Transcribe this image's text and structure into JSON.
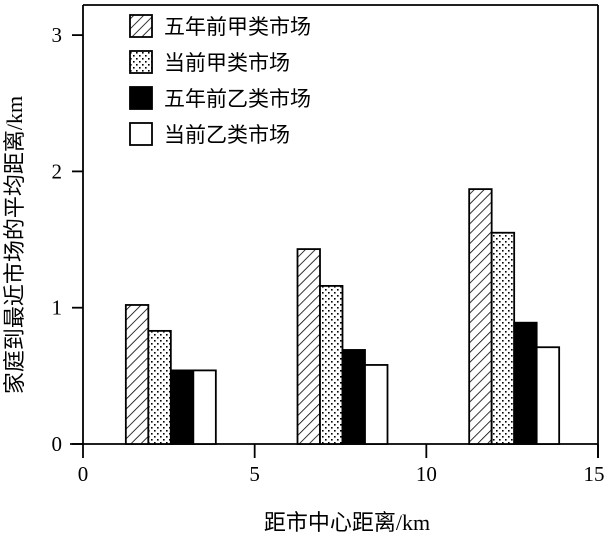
{
  "chart_data": {
    "type": "bar",
    "title": "",
    "xlabel": "距市中心距离/km",
    "ylabel": "家庭到最近市场的平均距离/km",
    "xlim": [
      0,
      15
    ],
    "ylim": [
      0,
      3.3
    ],
    "xticks": [
      0,
      5,
      10,
      15
    ],
    "yticks": [
      0,
      1,
      2,
      3
    ],
    "grid": false,
    "legend_position": "upper left",
    "categories": [
      "2.5",
      "7.5",
      "12.5"
    ],
    "group_centers": [
      2.5,
      7.5,
      12.5
    ],
    "series": [
      {
        "name": "五年前甲类市场",
        "pattern": "diagonal-hatch",
        "values": [
          1.02,
          1.43,
          1.87
        ]
      },
      {
        "name": "当前甲类市场",
        "pattern": "dots",
        "values": [
          0.83,
          1.16,
          1.55
        ]
      },
      {
        "name": "五年前乙类市场",
        "pattern": "solid-black",
        "values": [
          0.54,
          0.69,
          0.89
        ]
      },
      {
        "name": "当前乙类市场",
        "pattern": "white",
        "values": [
          0.54,
          0.58,
          0.71
        ]
      }
    ]
  },
  "legend": {
    "items": [
      {
        "label": "五年前甲类市场"
      },
      {
        "label": "当前甲类市场"
      },
      {
        "label": "五年前乙类市场"
      },
      {
        "label": "当前乙类市场"
      }
    ]
  },
  "axes": {
    "x_title": "距市中心距离/km",
    "y_title": "家庭到最近市场的平均距离/km",
    "x_tick_labels": [
      "0",
      "5",
      "10",
      "15"
    ],
    "y_tick_labels": [
      "0",
      "1",
      "2",
      "3"
    ]
  }
}
